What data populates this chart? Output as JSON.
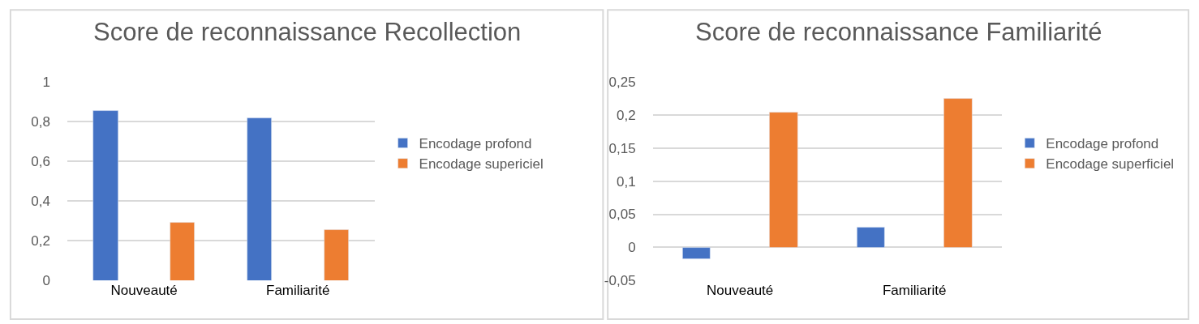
{
  "chart_data": [
    {
      "type": "bar",
      "title": "Score de reconnaissance Recollection",
      "categories": [
        "Nouveauté",
        "Familiarité"
      ],
      "series": [
        {
          "name": "Encodage profond",
          "color": "#4472c4",
          "values": [
            0.852,
            0.816
          ]
        },
        {
          "name": "Encodage supericiel",
          "color": "#ed7d31",
          "values": [
            0.291,
            0.256
          ]
        }
      ],
      "ylim": [
        0,
        1
      ],
      "yticks": [
        0,
        {
          "value": 0.2,
          "label": "0,2"
        },
        {
          "value": 0.4,
          "label": "0,4"
        },
        {
          "value": 0.6,
          "label": "0,6"
        },
        {
          "value": 0.8,
          "label": "0,8"
        },
        1
      ],
      "grid": "y",
      "legend": "right"
    },
    {
      "type": "bar",
      "title": "Score de reconnaissance Familiarité",
      "categories": [
        "Nouveauté",
        "Familiarité"
      ],
      "series": [
        {
          "name": "Encodage profond",
          "color": "#4472c4",
          "values": [
            -0.017,
            0.03
          ]
        },
        {
          "name": "Encodage superficiel",
          "color": "#ed7d31",
          "values": [
            0.203,
            0.224
          ]
        }
      ],
      "ylim": [
        -0.05,
        0.25
      ],
      "yticks": [
        {
          "value": -0.05,
          "label": "-0,05"
        },
        0,
        {
          "value": 0.05,
          "label": "0,05"
        },
        {
          "value": 0.1,
          "label": "0,1"
        },
        {
          "value": 0.15,
          "label": "0,15"
        },
        {
          "value": 0.2,
          "label": "0,2"
        },
        {
          "value": 0.25,
          "label": "0,25"
        }
      ],
      "grid": "y",
      "legend": "right"
    }
  ]
}
